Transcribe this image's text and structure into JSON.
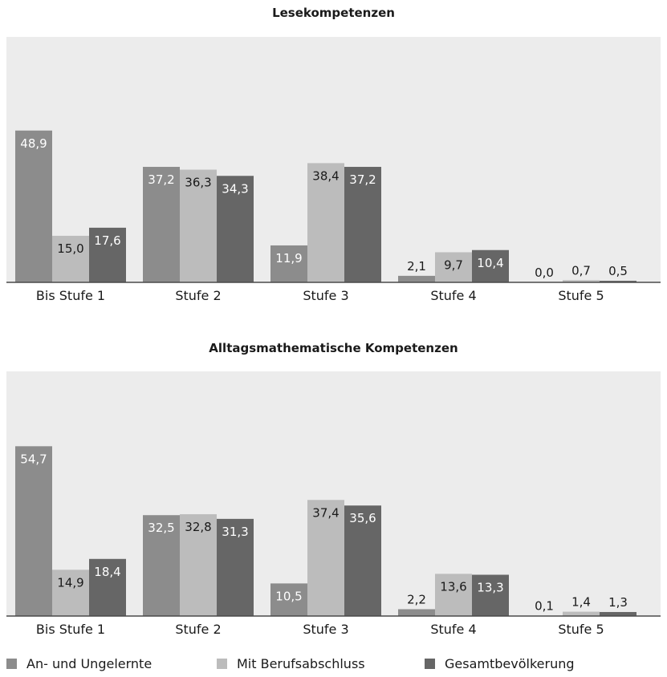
{
  "colors": {
    "panel_bg": "#ececec",
    "an_und_ungelernte": "#8c8c8c",
    "mit_berufsabschluss": "#bcbcbc",
    "gesamtbevoelkerung": "#666666",
    "axis": "#4a4a4a"
  },
  "legend": [
    {
      "name": "An- und Ungelernte",
      "color": "#8c8c8c"
    },
    {
      "name": "Mit Berufsabschluss",
      "color": "#bcbcbc"
    },
    {
      "name": "Gesamtbevölkerung",
      "color": "#666666"
    }
  ],
  "chart_data": [
    {
      "type": "bar",
      "title": "Lesekompetenzen",
      "categories": [
        "Bis Stufe 1",
        "Stufe 2",
        "Stufe 3",
        "Stufe 4",
        "Stufe 5"
      ],
      "series": [
        {
          "name": "An- und Ungelernte",
          "values": [
            48.9,
            37.2,
            11.9,
            2.1,
            0.0
          ],
          "labels": [
            "48,9",
            "37,2",
            "11,9",
            "2,1",
            "0,0"
          ]
        },
        {
          "name": "Mit Berufsabschluss",
          "values": [
            15.0,
            36.3,
            38.4,
            9.7,
            0.7
          ],
          "labels": [
            "15,0",
            "36,3",
            "38,4",
            "9,7",
            "0,7"
          ]
        },
        {
          "name": "Gesamtbevölkerung",
          "values": [
            17.6,
            34.3,
            37.2,
            10.4,
            0.5
          ],
          "labels": [
            "17,6",
            "34,3",
            "37,2",
            "10,4",
            "0,5"
          ]
        }
      ],
      "ylim": [
        0,
        60
      ],
      "grid": false,
      "legend_position": "bottom"
    },
    {
      "type": "bar",
      "title": "Alltagsmathematische Kompetenzen",
      "categories": [
        "Bis Stufe 1",
        "Stufe 2",
        "Stufe 3",
        "Stufe 4",
        "Stufe 5"
      ],
      "series": [
        {
          "name": "An- und Ungelernte",
          "values": [
            54.7,
            32.5,
            10.5,
            2.2,
            0.1
          ],
          "labels": [
            "54,7",
            "32,5",
            "10,5",
            "2,2",
            "0,1"
          ]
        },
        {
          "name": "Mit Berufsabschluss",
          "values": [
            14.9,
            32.8,
            37.4,
            13.6,
            1.4
          ],
          "labels": [
            "14,9",
            "32,8",
            "37,4",
            "13,6",
            "1,4"
          ]
        },
        {
          "name": "Gesamtbevölkerung",
          "values": [
            18.4,
            31.3,
            35.6,
            13.3,
            1.3
          ],
          "labels": [
            "18,4",
            "31,3",
            "35,6",
            "13,3",
            "1,3"
          ]
        }
      ],
      "ylim": [
        0,
        60
      ],
      "grid": false,
      "legend_position": "bottom"
    }
  ]
}
